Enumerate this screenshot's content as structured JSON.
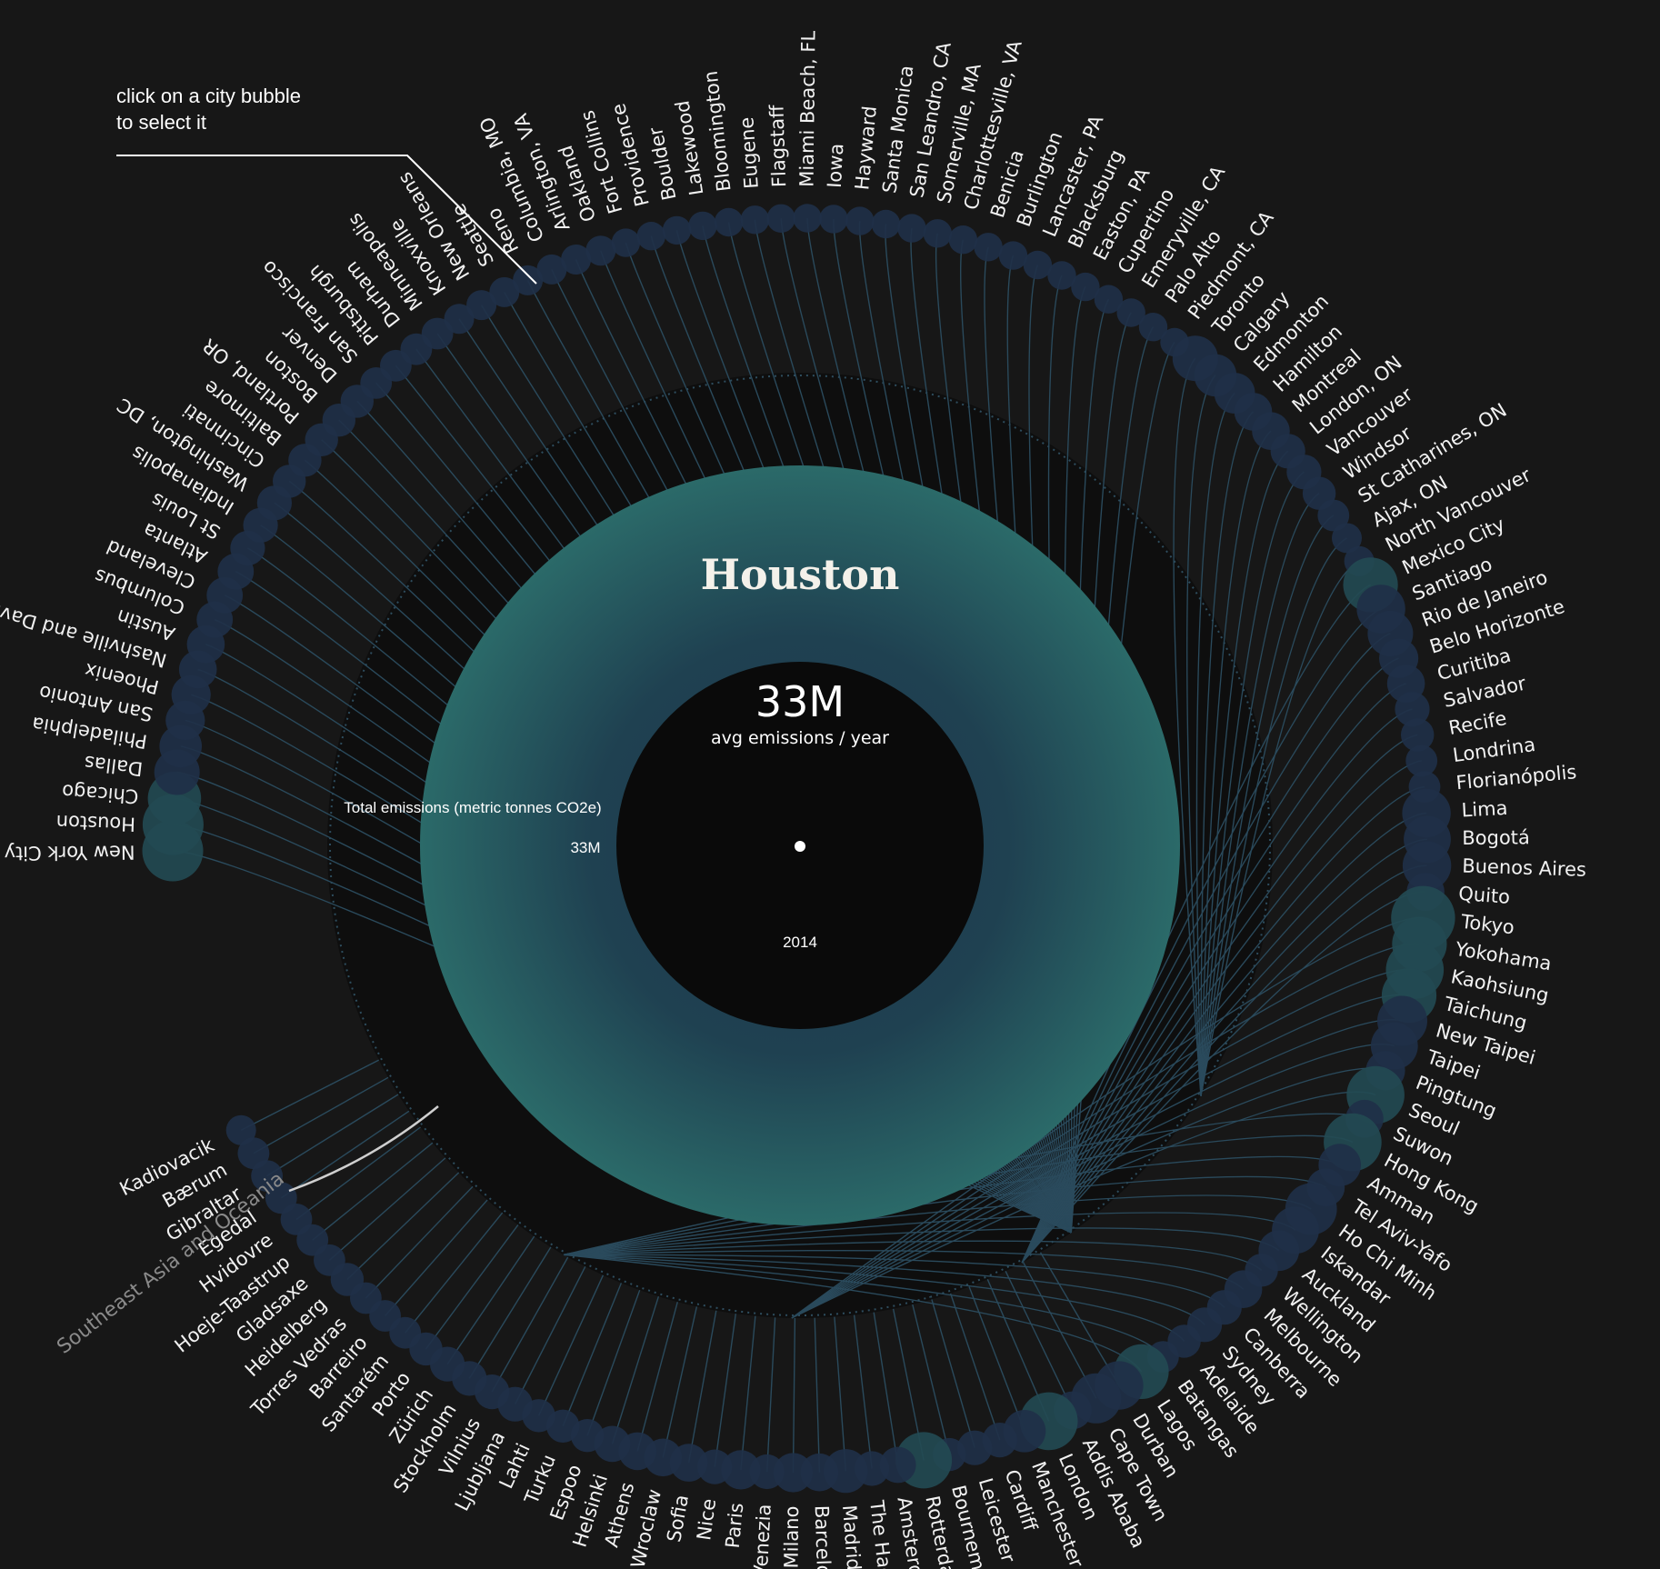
{
  "hint": {
    "line1": "click on a city bubble",
    "line2": "to select it"
  },
  "center": {
    "city": "Houston",
    "value_label": "33M",
    "value_caption": "avg emissions / year",
    "axis_label": "Total emissions (metric tonnes CO2e)",
    "axis_value": "33M",
    "year": "2014"
  },
  "region_label": "Southeast Asia and Oceania",
  "colors": {
    "background": "#171717",
    "bubble": "#1f3048",
    "bubble_big": "#234a52",
    "ring": "#2c6a69",
    "link": "#2a4a5c",
    "dark_disc": "#0d0d0d"
  },
  "chart_data": {
    "type": "radial-bubble",
    "title": "Houston",
    "cities": [
      {
        "name": "New York City",
        "s": 3
      },
      {
        "name": "Houston",
        "s": 3
      },
      {
        "name": "Chicago",
        "s": 2.5
      },
      {
        "name": "Dallas",
        "s": 2
      },
      {
        "name": "Philadelphia",
        "s": 1.8
      },
      {
        "name": "San Antonio",
        "s": 1.6
      },
      {
        "name": "Phoenix",
        "s": 1.6
      },
      {
        "name": "Nashville and Davidson",
        "s": 1.5
      },
      {
        "name": "Austin",
        "s": 1.5
      },
      {
        "name": "Columbus",
        "s": 1.4
      },
      {
        "name": "Cleveland",
        "s": 1.4
      },
      {
        "name": "Atlanta",
        "s": 1.4
      },
      {
        "name": "St Louis",
        "s": 1.3
      },
      {
        "name": "Indianapolis",
        "s": 1.3
      },
      {
        "name": "Washington, DC",
        "s": 1.3
      },
      {
        "name": "Cincinnati",
        "s": 1.2
      },
      {
        "name": "Baltimore",
        "s": 1.2
      },
      {
        "name": "Portland, OR",
        "s": 1.2
      },
      {
        "name": "Boston",
        "s": 1.2
      },
      {
        "name": "Denver",
        "s": 1.2
      },
      {
        "name": "San Francisco",
        "s": 1.1
      },
      {
        "name": "Pittsburgh",
        "s": 1.1
      },
      {
        "name": "Durham",
        "s": 1.1
      },
      {
        "name": "Minneapolis",
        "s": 1.1
      },
      {
        "name": "Knoxville",
        "s": 1.0
      },
      {
        "name": "New Orleans",
        "s": 1.0
      },
      {
        "name": "Seattle",
        "s": 1.0
      },
      {
        "name": "Reno",
        "s": 1.0
      },
      {
        "name": "Columbia, MO",
        "s": 1.0
      },
      {
        "name": "Arlington, VA",
        "s": 1.0
      },
      {
        "name": "Oakland",
        "s": 1.0
      },
      {
        "name": "Fort Collins",
        "s": 0.9
      },
      {
        "name": "Providence",
        "s": 0.9
      },
      {
        "name": "Boulder",
        "s": 0.9
      },
      {
        "name": "Lakewood",
        "s": 0.9
      },
      {
        "name": "Bloomington",
        "s": 0.9
      },
      {
        "name": "Eugene",
        "s": 0.9
      },
      {
        "name": "Flagstaff",
        "s": 0.9
      },
      {
        "name": "Miami Beach, FL",
        "s": 0.9
      },
      {
        "name": "Iowa",
        "s": 0.9
      },
      {
        "name": "Hayward",
        "s": 0.9
      },
      {
        "name": "Santa Monica",
        "s": 0.9
      },
      {
        "name": "San Leandro, CA",
        "s": 0.9
      },
      {
        "name": "Somerville, MA",
        "s": 0.9
      },
      {
        "name": "Charlottesville, VA",
        "s": 0.9
      },
      {
        "name": "Benicia",
        "s": 0.9
      },
      {
        "name": "Burlington",
        "s": 0.9
      },
      {
        "name": "Lancaster, PA",
        "s": 0.9
      },
      {
        "name": "Blacksburg",
        "s": 0.9
      },
      {
        "name": "Easton, PA",
        "s": 0.9
      },
      {
        "name": "Cupertino",
        "s": 0.9
      },
      {
        "name": "Emeryville, CA",
        "s": 0.9
      },
      {
        "name": "Palo Alto",
        "s": 0.9
      },
      {
        "name": "Piedmont, CA",
        "s": 0.9
      },
      {
        "name": "Toronto",
        "s": 2.0
      },
      {
        "name": "Calgary",
        "s": 1.8
      },
      {
        "name": "Edmonton",
        "s": 1.7
      },
      {
        "name": "Hamilton",
        "s": 1.5
      },
      {
        "name": "Montreal",
        "s": 1.5
      },
      {
        "name": "London, ON",
        "s": 1.3
      },
      {
        "name": "Vancouver",
        "s": 1.3
      },
      {
        "name": "Windsor",
        "s": 1.2
      },
      {
        "name": "St Catharines, ON",
        "s": 1.1
      },
      {
        "name": "Ajax, ON",
        "s": 1.0
      },
      {
        "name": "North Vancouver",
        "s": 1.0
      },
      {
        "name": "Mexico City",
        "s": 2.6
      },
      {
        "name": "Santiago",
        "s": 2.2
      },
      {
        "name": "Rio de Janeiro",
        "s": 2.0
      },
      {
        "name": "Belo Horizonte",
        "s": 1.6
      },
      {
        "name": "Curitiba",
        "s": 1.5
      },
      {
        "name": "Salvador",
        "s": 1.3
      },
      {
        "name": "Recife",
        "s": 1.2
      },
      {
        "name": "Londrina",
        "s": 1.1
      },
      {
        "name": "Florianópolis",
        "s": 1.1
      },
      {
        "name": "Lima",
        "s": 2.2
      },
      {
        "name": "Bogotá",
        "s": 2.1
      },
      {
        "name": "Buenos Aires",
        "s": 2.2
      },
      {
        "name": "Quito",
        "s": 1.5
      },
      {
        "name": "Tokyo",
        "s": 3.2
      },
      {
        "name": "Yokohama",
        "s": 2.6
      },
      {
        "name": "Kaohsiung",
        "s": 2.8
      },
      {
        "name": "Taichung",
        "s": 2.6
      },
      {
        "name": "New Taipei",
        "s": 2.3
      },
      {
        "name": "Taipei",
        "s": 2.1
      },
      {
        "name": "Pingtung",
        "s": 1.6
      },
      {
        "name": "Seoul",
        "s": 2.8
      },
      {
        "name": "Suwon",
        "s": 1.5
      },
      {
        "name": "Hong Kong",
        "s": 2.8
      },
      {
        "name": "Amman",
        "s": 1.8
      },
      {
        "name": "Tel Aviv-Yafo",
        "s": 1.5
      },
      {
        "name": "Ho Chi Minh",
        "s": 2.4
      },
      {
        "name": "Iskandar",
        "s": 2.1
      },
      {
        "name": "Auckland",
        "s": 1.7
      },
      {
        "name": "Wellington",
        "s": 1.2
      },
      {
        "name": "Melbourne",
        "s": 1.5
      },
      {
        "name": "Canberra",
        "s": 1.3
      },
      {
        "name": "Sydney",
        "s": 1.3
      },
      {
        "name": "Adelaide",
        "s": 1.2
      },
      {
        "name": "Batangas",
        "s": 1.1
      },
      {
        "name": "Lagos",
        "s": 2.6
      },
      {
        "name": "Durban",
        "s": 2.2
      },
      {
        "name": "Cape Town",
        "s": 2.3
      },
      {
        "name": "Addis Ababa",
        "s": 1.5
      },
      {
        "name": "London",
        "s": 2.8
      },
      {
        "name": "Manchester",
        "s": 1.8
      },
      {
        "name": "Cardiff",
        "s": 1.3
      },
      {
        "name": "Leicester",
        "s": 1.3
      },
      {
        "name": "Bournemouth",
        "s": 1.2
      },
      {
        "name": "Rotterdam",
        "s": 2.7
      },
      {
        "name": "Amsterdam",
        "s": 1.4
      },
      {
        "name": "The Hague",
        "s": 1.3
      },
      {
        "name": "Madrid",
        "s": 1.9
      },
      {
        "name": "Barcelona",
        "s": 1.5
      },
      {
        "name": "Milano",
        "s": 1.6
      },
      {
        "name": "Venezia",
        "s": 1.3
      },
      {
        "name": "Paris",
        "s": 1.6
      },
      {
        "name": "Nice",
        "s": 1.3
      },
      {
        "name": "Sofia",
        "s": 1.5
      },
      {
        "name": "Wroclaw",
        "s": 1.5
      },
      {
        "name": "Athens",
        "s": 1.5
      },
      {
        "name": "Helsinki",
        "s": 1.4
      },
      {
        "name": "Espoo",
        "s": 1.2
      },
      {
        "name": "Turku",
        "s": 1.2
      },
      {
        "name": "Lahti",
        "s": 1.2
      },
      {
        "name": "Ljubljana",
        "s": 1.3
      },
      {
        "name": "Vilnius",
        "s": 1.3
      },
      {
        "name": "Stockholm",
        "s": 1.3
      },
      {
        "name": "Zürich",
        "s": 1.3
      },
      {
        "name": "Porto",
        "s": 1.2
      },
      {
        "name": "Santarém",
        "s": 1.1
      },
      {
        "name": "Barreiro",
        "s": 1.1
      },
      {
        "name": "Torres Vedras",
        "s": 1.1
      },
      {
        "name": "Heidelberg",
        "s": 1.2
      },
      {
        "name": "Gladsaxe",
        "s": 1.1
      },
      {
        "name": "Hoeje-Taastrup",
        "s": 1.1
      },
      {
        "name": "Hvidovre",
        "s": 1.1
      },
      {
        "name": "Egedal",
        "s": 1.1
      },
      {
        "name": "Gibraltar",
        "s": 1.1
      },
      {
        "name": "Bærum",
        "s": 1.1
      },
      {
        "name": "Kadiovacik",
        "s": 1.0
      }
    ]
  }
}
